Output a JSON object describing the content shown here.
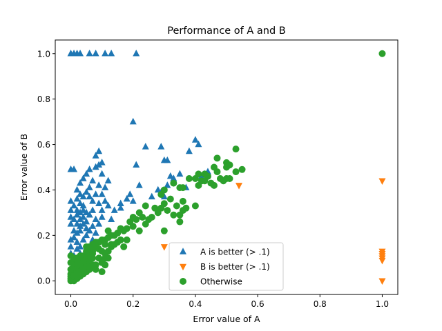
{
  "chart_data": {
    "type": "scatter",
    "title": "Performance of A and B",
    "xlabel": "Error value of A",
    "ylabel": "Error value of B",
    "xlim": [
      -0.05,
      1.05
    ],
    "ylim": [
      -0.06,
      1.06
    ],
    "xticks": [
      0.0,
      0.2,
      0.4,
      0.6,
      0.8,
      1.0
    ],
    "yticks": [
      0.0,
      0.2,
      0.4,
      0.6,
      0.8,
      1.0
    ],
    "xtick_labels": [
      "0.0",
      "0.2",
      "0.4",
      "0.6",
      "0.8",
      "1.0"
    ],
    "ytick_labels": [
      "0.0",
      "0.2",
      "0.4",
      "0.6",
      "0.8",
      "1.0"
    ],
    "grid": false,
    "legend_position": "lower-center",
    "series": [
      {
        "name": "A is better (> .1)",
        "marker": "triangle-up",
        "color": "#1f77b4",
        "points": [
          [
            0.0,
            1.0
          ],
          [
            0.01,
            1.0
          ],
          [
            0.02,
            1.0
          ],
          [
            0.03,
            1.0
          ],
          [
            0.06,
            1.0
          ],
          [
            0.08,
            1.0
          ],
          [
            0.11,
            1.0
          ],
          [
            0.13,
            1.0
          ],
          [
            0.21,
            1.0
          ],
          [
            0.2,
            0.7
          ],
          [
            0.24,
            0.59
          ],
          [
            0.4,
            0.62
          ],
          [
            0.41,
            0.6
          ],
          [
            0.38,
            0.57
          ],
          [
            0.29,
            0.59
          ],
          [
            0.3,
            0.53
          ],
          [
            0.31,
            0.53
          ],
          [
            0.09,
            0.57
          ],
          [
            0.08,
            0.55
          ],
          [
            0.1,
            0.52
          ],
          [
            0.09,
            0.51
          ],
          [
            0.21,
            0.51
          ],
          [
            0.0,
            0.49
          ],
          [
            0.01,
            0.49
          ],
          [
            0.05,
            0.47
          ],
          [
            0.06,
            0.49
          ],
          [
            0.08,
            0.5
          ],
          [
            0.1,
            0.47
          ],
          [
            0.04,
            0.45
          ],
          [
            0.07,
            0.44
          ],
          [
            0.12,
            0.44
          ],
          [
            0.03,
            0.43
          ],
          [
            0.09,
            0.42
          ],
          [
            0.32,
            0.46
          ],
          [
            0.35,
            0.47
          ],
          [
            0.33,
            0.45
          ],
          [
            0.42,
            0.46
          ],
          [
            0.43,
            0.47
          ],
          [
            0.44,
            0.48
          ],
          [
            0.02,
            0.4
          ],
          [
            0.06,
            0.41
          ],
          [
            0.11,
            0.41
          ],
          [
            0.22,
            0.42
          ],
          [
            0.31,
            0.42
          ],
          [
            0.28,
            0.4
          ],
          [
            0.37,
            0.41
          ],
          [
            0.03,
            0.38
          ],
          [
            0.05,
            0.39
          ],
          [
            0.04,
            0.37
          ],
          [
            0.02,
            0.36
          ],
          [
            0.06,
            0.37
          ],
          [
            0.08,
            0.38
          ],
          [
            0.1,
            0.38
          ],
          [
            0.19,
            0.38
          ],
          [
            0.26,
            0.37
          ],
          [
            0.29,
            0.39
          ],
          [
            0.3,
            0.37
          ],
          [
            0.0,
            0.35
          ],
          [
            0.01,
            0.33
          ],
          [
            0.03,
            0.34
          ],
          [
            0.04,
            0.33
          ],
          [
            0.07,
            0.35
          ],
          [
            0.09,
            0.34
          ],
          [
            0.11,
            0.35
          ],
          [
            0.12,
            0.33
          ],
          [
            0.16,
            0.34
          ],
          [
            0.18,
            0.36
          ],
          [
            0.2,
            0.35
          ],
          [
            0.0,
            0.31
          ],
          [
            0.02,
            0.31
          ],
          [
            0.03,
            0.3
          ],
          [
            0.04,
            0.31
          ],
          [
            0.05,
            0.3
          ],
          [
            0.07,
            0.31
          ],
          [
            0.1,
            0.31
          ],
          [
            0.14,
            0.31
          ],
          [
            0.16,
            0.32
          ],
          [
            0.0,
            0.28
          ],
          [
            0.01,
            0.27
          ],
          [
            0.02,
            0.29
          ],
          [
            0.03,
            0.27
          ],
          [
            0.04,
            0.28
          ],
          [
            0.05,
            0.26
          ],
          [
            0.06,
            0.29
          ],
          [
            0.08,
            0.27
          ],
          [
            0.1,
            0.28
          ],
          [
            0.13,
            0.27
          ],
          [
            0.0,
            0.25
          ],
          [
            0.02,
            0.25
          ],
          [
            0.03,
            0.24
          ],
          [
            0.04,
            0.25
          ],
          [
            0.05,
            0.23
          ],
          [
            0.07,
            0.24
          ],
          [
            0.09,
            0.25
          ],
          [
            0.01,
            0.22
          ],
          [
            0.02,
            0.21
          ],
          [
            0.03,
            0.22
          ],
          [
            0.05,
            0.2
          ],
          [
            0.06,
            0.22
          ],
          [
            0.08,
            0.21
          ],
          [
            0.0,
            0.18
          ],
          [
            0.01,
            0.19
          ],
          [
            0.02,
            0.17
          ],
          [
            0.04,
            0.18
          ],
          [
            0.07,
            0.18
          ],
          [
            0.0,
            0.15
          ],
          [
            0.02,
            0.14
          ],
          [
            0.03,
            0.15
          ],
          [
            0.05,
            0.14
          ],
          [
            0.0,
            0.12
          ],
          [
            0.01,
            0.11
          ],
          [
            0.03,
            0.12
          ]
        ]
      },
      {
        "name": "B is better (> .1)",
        "marker": "triangle-down",
        "color": "#ff7f0e",
        "points": [
          [
            1.0,
            0.44
          ],
          [
            0.54,
            0.42
          ],
          [
            0.3,
            0.15
          ],
          [
            1.0,
            0.13
          ],
          [
            1.0,
            0.12
          ],
          [
            1.0,
            0.11
          ],
          [
            1.0,
            0.1
          ],
          [
            1.0,
            0.09
          ],
          [
            1.0,
            0.0
          ]
        ]
      },
      {
        "name": "Otherwise",
        "marker": "circle",
        "color": "#2ca02c",
        "points": [
          [
            1.0,
            1.0
          ],
          [
            0.53,
            0.58
          ],
          [
            0.47,
            0.54
          ],
          [
            0.5,
            0.52
          ],
          [
            0.55,
            0.49
          ],
          [
            0.53,
            0.48
          ],
          [
            0.5,
            0.5
          ],
          [
            0.51,
            0.51
          ],
          [
            0.46,
            0.5
          ],
          [
            0.47,
            0.48
          ],
          [
            0.44,
            0.46
          ],
          [
            0.43,
            0.47
          ],
          [
            0.41,
            0.47
          ],
          [
            0.38,
            0.45
          ],
          [
            0.4,
            0.45
          ],
          [
            0.42,
            0.44
          ],
          [
            0.43,
            0.44
          ],
          [
            0.45,
            0.43
          ],
          [
            0.46,
            0.42
          ],
          [
            0.41,
            0.42
          ],
          [
            0.49,
            0.44
          ],
          [
            0.5,
            0.45
          ],
          [
            0.51,
            0.45
          ],
          [
            0.48,
            0.45
          ],
          [
            0.33,
            0.43
          ],
          [
            0.3,
            0.4
          ],
          [
            0.35,
            0.41
          ],
          [
            0.36,
            0.41
          ],
          [
            0.29,
            0.38
          ],
          [
            0.32,
            0.36
          ],
          [
            0.3,
            0.34
          ],
          [
            0.36,
            0.35
          ],
          [
            0.34,
            0.33
          ],
          [
            0.37,
            0.32
          ],
          [
            0.36,
            0.31
          ],
          [
            0.35,
            0.29
          ],
          [
            0.4,
            0.33
          ],
          [
            0.33,
            0.29
          ],
          [
            0.35,
            0.26
          ],
          [
            0.29,
            0.32
          ],
          [
            0.31,
            0.31
          ],
          [
            0.28,
            0.3
          ],
          [
            0.27,
            0.32
          ],
          [
            0.24,
            0.33
          ],
          [
            0.26,
            0.28
          ],
          [
            0.22,
            0.3
          ],
          [
            0.23,
            0.28
          ],
          [
            0.21,
            0.27
          ],
          [
            0.25,
            0.27
          ],
          [
            0.19,
            0.26
          ],
          [
            0.2,
            0.28
          ],
          [
            0.2,
            0.24
          ],
          [
            0.18,
            0.23
          ],
          [
            0.17,
            0.22
          ],
          [
            0.16,
            0.23
          ],
          [
            0.15,
            0.21
          ],
          [
            0.14,
            0.2
          ],
          [
            0.13,
            0.2
          ],
          [
            0.12,
            0.22
          ],
          [
            0.12,
            0.19
          ],
          [
            0.11,
            0.18
          ],
          [
            0.1,
            0.18
          ],
          [
            0.09,
            0.17
          ],
          [
            0.08,
            0.17
          ],
          [
            0.07,
            0.16
          ],
          [
            0.06,
            0.15
          ],
          [
            0.05,
            0.15
          ],
          [
            0.15,
            0.17
          ],
          [
            0.16,
            0.18
          ],
          [
            0.17,
            0.15
          ],
          [
            0.14,
            0.16
          ],
          [
            0.13,
            0.16
          ],
          [
            0.3,
            0.22
          ],
          [
            0.22,
            0.22
          ],
          [
            0.24,
            0.25
          ],
          [
            0.18,
            0.18
          ],
          [
            0.12,
            0.13
          ],
          [
            0.11,
            0.12
          ],
          [
            0.13,
            0.15
          ],
          [
            0.11,
            0.16
          ],
          [
            0.1,
            0.13
          ],
          [
            0.09,
            0.14
          ],
          [
            0.08,
            0.15
          ],
          [
            0.07,
            0.13
          ],
          [
            0.06,
            0.12
          ],
          [
            0.05,
            0.12
          ],
          [
            0.04,
            0.11
          ],
          [
            0.03,
            0.1
          ],
          [
            0.02,
            0.1
          ],
          [
            0.01,
            0.09
          ],
          [
            0.0,
            0.08
          ],
          [
            0.09,
            0.1
          ],
          [
            0.1,
            0.08
          ],
          [
            0.08,
            0.07
          ],
          [
            0.11,
            0.07
          ],
          [
            0.07,
            0.1
          ],
          [
            0.06,
            0.09
          ],
          [
            0.05,
            0.08
          ],
          [
            0.04,
            0.07
          ],
          [
            0.03,
            0.06
          ],
          [
            0.02,
            0.05
          ],
          [
            0.01,
            0.04
          ],
          [
            0.0,
            0.03
          ],
          [
            0.0,
            0.02
          ],
          [
            0.0,
            0.01
          ],
          [
            0.0,
            0.0
          ],
          [
            0.01,
            0.0
          ],
          [
            0.02,
            0.01
          ],
          [
            0.03,
            0.02
          ],
          [
            0.04,
            0.03
          ],
          [
            0.05,
            0.04
          ],
          [
            0.06,
            0.05
          ],
          [
            0.07,
            0.06
          ],
          [
            0.08,
            0.05
          ],
          [
            0.05,
            0.06
          ],
          [
            0.06,
            0.06
          ],
          [
            0.07,
            0.07
          ],
          [
            0.02,
            0.03
          ],
          [
            0.03,
            0.04
          ],
          [
            0.04,
            0.05
          ],
          [
            0.01,
            0.02
          ],
          [
            0.02,
            0.02
          ],
          [
            0.0,
            0.05
          ],
          [
            0.01,
            0.06
          ],
          [
            0.02,
            0.07
          ],
          [
            0.03,
            0.08
          ],
          [
            0.04,
            0.09
          ],
          [
            0.05,
            0.1
          ],
          [
            0.06,
            0.11
          ],
          [
            0.1,
            0.04
          ],
          [
            0.11,
            0.1
          ],
          [
            0.12,
            0.1
          ],
          [
            0.05,
            0.13
          ],
          [
            0.07,
            0.12
          ],
          [
            0.02,
            0.09
          ],
          [
            0.01,
            0.1
          ],
          [
            0.0,
            0.11
          ],
          [
            0.03,
            0.11
          ]
        ]
      }
    ]
  }
}
